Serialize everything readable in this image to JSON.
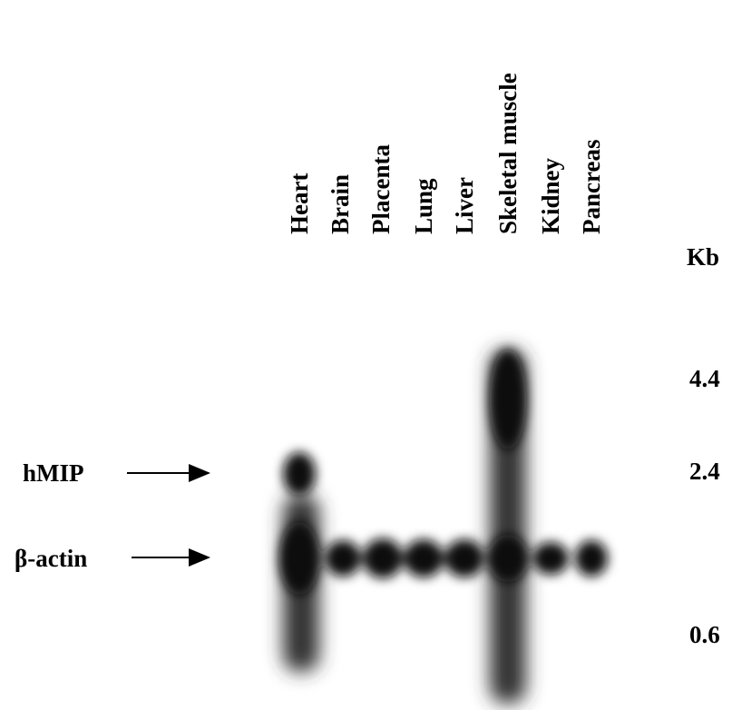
{
  "lanes": [
    "Heart",
    "Brain",
    "Placenta",
    "Lung",
    "Liver",
    "Skeletal muscle",
    "Kidney",
    "Pancreas"
  ],
  "size_unit": "Kb",
  "markers": [
    "4.4",
    "2.4",
    "0.6"
  ],
  "bands": [
    "hMIP",
    "β-actin"
  ]
}
